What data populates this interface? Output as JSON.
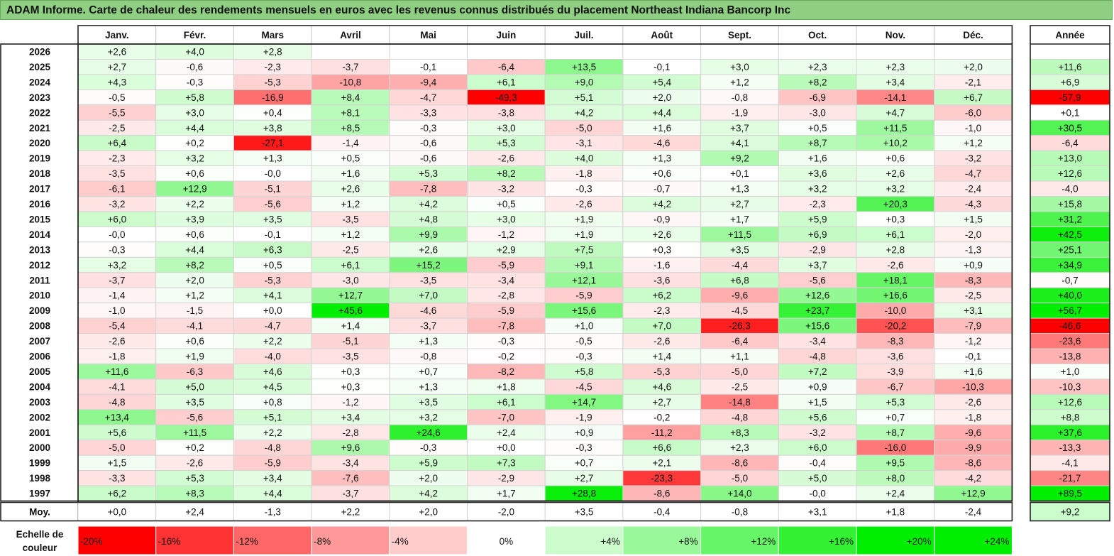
{
  "title": "ADAM Informe. Carte de chaleur des rendements mensuels en euros avec les revenus connus distribués du placement Northeast Indiana Bancorp Inc",
  "chart_data": {
    "type": "heatmap",
    "months": [
      "Janv.",
      "Févr.",
      "Mars",
      "Avril",
      "Mai",
      "Juin",
      "Juil.",
      "Août",
      "Sept.",
      "Oct.",
      "Nov.",
      "Déc."
    ],
    "year_header": "Année",
    "avg_label": "Moy.",
    "rows": [
      {
        "year": "2026",
        "values": [
          "+2,6",
          "+4,0",
          "+2,8",
          "",
          "",
          "",
          "",
          "",
          "",
          "",
          "",
          ""
        ],
        "total": ""
      },
      {
        "year": "2025",
        "values": [
          "+2,7",
          "-0,6",
          "-2,3",
          "-3,7",
          "-0,1",
          "-6,4",
          "+13,5",
          "-0,1",
          "+3,0",
          "+2,3",
          "+2,3",
          "+2,0"
        ],
        "total": "+11,6"
      },
      {
        "year": "2024",
        "values": [
          "+4,3",
          "-0,3",
          "-5,3",
          "-10,8",
          "-9,4",
          "+6,1",
          "+9,0",
          "+5,4",
          "+1,2",
          "+8,2",
          "+3,4",
          "-2,1"
        ],
        "total": "+6,9"
      },
      {
        "year": "2023",
        "values": [
          "-0,5",
          "+5,8",
          "-16,9",
          "+8,4",
          "-4,7",
          "-49,3",
          "+5,1",
          "+2,0",
          "-0,8",
          "-6,9",
          "-14,1",
          "+6,7"
        ],
        "total": "-57,9"
      },
      {
        "year": "2022",
        "values": [
          "-5,5",
          "+3,0",
          "+0,4",
          "+8,1",
          "-3,3",
          "-3,8",
          "+4,2",
          "+4,4",
          "-1,9",
          "-3,0",
          "+4,7",
          "-6,0"
        ],
        "total": "+0,1"
      },
      {
        "year": "2021",
        "values": [
          "-2,5",
          "+4,4",
          "+3,8",
          "+8,5",
          "-0,3",
          "+3,0",
          "-5,0",
          "+1,6",
          "+3,7",
          "+0,5",
          "+11,5",
          "-1,0"
        ],
        "total": "+30,5"
      },
      {
        "year": "2020",
        "values": [
          "+6,4",
          "+0,2",
          "-27,1",
          "-1,4",
          "-0,6",
          "+5,3",
          "-3,1",
          "-4,6",
          "+4,1",
          "+8,7",
          "+10,2",
          "+1,2"
        ],
        "total": "-6,4"
      },
      {
        "year": "2019",
        "values": [
          "-2,3",
          "+3,2",
          "+1,3",
          "+0,5",
          "-0,6",
          "-2,6",
          "+4,0",
          "+1,3",
          "+9,2",
          "+1,6",
          "+0,6",
          "-3,2"
        ],
        "total": "+13,0"
      },
      {
        "year": "2018",
        "values": [
          "-3,5",
          "+0,6",
          "-0,0",
          "+1,6",
          "+5,3",
          "+8,2",
          "-1,8",
          "+0,6",
          "+0,1",
          "+3,6",
          "+2,6",
          "-4,7"
        ],
        "total": "+12,6"
      },
      {
        "year": "2017",
        "values": [
          "-6,1",
          "+12,9",
          "-5,1",
          "+2,6",
          "-7,8",
          "-3,2",
          "-0,3",
          "-0,7",
          "+1,3",
          "+3,2",
          "+3,2",
          "-2,4"
        ],
        "total": "-4,0"
      },
      {
        "year": "2016",
        "values": [
          "-3,2",
          "+2,2",
          "-5,6",
          "+1,2",
          "+4,2",
          "+0,5",
          "-2,6",
          "+4,2",
          "+2,7",
          "-2,3",
          "+20,3",
          "-4,3"
        ],
        "total": "+15,8"
      },
      {
        "year": "2015",
        "values": [
          "+6,0",
          "+3,9",
          "+3,5",
          "-3,5",
          "+4,8",
          "+3,0",
          "+1,9",
          "-0,9",
          "+1,7",
          "+5,9",
          "+0,3",
          "+1,5"
        ],
        "total": "+31,2"
      },
      {
        "year": "2014",
        "values": [
          "-0,0",
          "+0,6",
          "-0,1",
          "+1,2",
          "+9,9",
          "-1,2",
          "+1,9",
          "+2,6",
          "+11,5",
          "+6,9",
          "+6,1",
          "-2,0"
        ],
        "total": "+42,5"
      },
      {
        "year": "2013",
        "values": [
          "-0,3",
          "+4,4",
          "+6,3",
          "-2,5",
          "+2,6",
          "+2,9",
          "+7,5",
          "+0,3",
          "+3,5",
          "-2,9",
          "+2,8",
          "-1,3"
        ],
        "total": "+25,1"
      },
      {
        "year": "2012",
        "values": [
          "+3,2",
          "+8,2",
          "+0,5",
          "+6,1",
          "+15,2",
          "-5,9",
          "+9,1",
          "-1,6",
          "-4,4",
          "+3,7",
          "-2,6",
          "+0,9"
        ],
        "total": "+34,9"
      },
      {
        "year": "2011",
        "values": [
          "-3,7",
          "+2,0",
          "-5,3",
          "-3,0",
          "-3,5",
          "-3,4",
          "+12,1",
          "-3,6",
          "+6,8",
          "-5,6",
          "+18,1",
          "-8,3"
        ],
        "total": "-0,7"
      },
      {
        "year": "2010",
        "values": [
          "-1,4",
          "+1,2",
          "+4,1",
          "+12,7",
          "+7,0",
          "-2,8",
          "-5,9",
          "+6,2",
          "-9,6",
          "+12,6",
          "+16,6",
          "-2,5"
        ],
        "total": "+40,0"
      },
      {
        "year": "2009",
        "values": [
          "-1,0",
          "-1,5",
          "+0,0",
          "+45,6",
          "-4,6",
          "-5,9",
          "+15,6",
          "-2,3",
          "-4,5",
          "+23,7",
          "-10,0",
          "+3,1"
        ],
        "total": "+56,7"
      },
      {
        "year": "2008",
        "values": [
          "-5,4",
          "-4,1",
          "-4,7",
          "+1,4",
          "-3,7",
          "-7,8",
          "+1,0",
          "+7,0",
          "-26,3",
          "+15,6",
          "-20,2",
          "-7,9"
        ],
        "total": "-46,6"
      },
      {
        "year": "2007",
        "values": [
          "-2,6",
          "+0,6",
          "+2,2",
          "-5,1",
          "+1,3",
          "-0,3",
          "-0,5",
          "-2,6",
          "-6,4",
          "-3,4",
          "-8,3",
          "-1,2"
        ],
        "total": "-23,6"
      },
      {
        "year": "2006",
        "values": [
          "-1,8",
          "+1,9",
          "-4,0",
          "-3,5",
          "-0,8",
          "-0,2",
          "-0,3",
          "+1,4",
          "+1,1",
          "-4,8",
          "-3,6",
          "-0,1"
        ],
        "total": "-13,8"
      },
      {
        "year": "2005",
        "values": [
          "+11,6",
          "-6,3",
          "+4,6",
          "+0,3",
          "+0,7",
          "-8,2",
          "+5,8",
          "-5,3",
          "-5,0",
          "+7,2",
          "-3,9",
          "+1,6"
        ],
        "total": "+1,0"
      },
      {
        "year": "2004",
        "values": [
          "-4,1",
          "+5,0",
          "+4,5",
          "+0,3",
          "+1,3",
          "+1,8",
          "-4,5",
          "+4,6",
          "-2,5",
          "+0,9",
          "-6,7",
          "-10,3"
        ],
        "total": "-10,3"
      },
      {
        "year": "2003",
        "values": [
          "-4,8",
          "+3,5",
          "+0,8",
          "-1,2",
          "+3,5",
          "+6,1",
          "+14,7",
          "+2,7",
          "-14,8",
          "+1,5",
          "+5,3",
          "-2,6"
        ],
        "total": "+12,6"
      },
      {
        "year": "2002",
        "values": [
          "+13,4",
          "-5,6",
          "+5,1",
          "+3,4",
          "+3,2",
          "-7,0",
          "-1,9",
          "-0,2",
          "-4,8",
          "+5,6",
          "+0,7",
          "-1,8"
        ],
        "total": "+8,8"
      },
      {
        "year": "2001",
        "values": [
          "+5,6",
          "+11,5",
          "+2,2",
          "-2,8",
          "+24,6",
          "+2,4",
          "+0,9",
          "-11,2",
          "+8,3",
          "-3,2",
          "+8,7",
          "-9,6"
        ],
        "total": "+37,6"
      },
      {
        "year": "2000",
        "values": [
          "-5,0",
          "+0,2",
          "-4,8",
          "+9,6",
          "-0,3",
          "+0,0",
          "-0,3",
          "+6,6",
          "+2,3",
          "+6,0",
          "-16,0",
          "-9,9"
        ],
        "total": "-13,3"
      },
      {
        "year": "1999",
        "values": [
          "+1,5",
          "-2,6",
          "-5,9",
          "-3,4",
          "+5,9",
          "+7,3",
          "+0,7",
          "+2,1",
          "-8,6",
          "-0,4",
          "+9,5",
          "-8,6"
        ],
        "total": "-4,1"
      },
      {
        "year": "1998",
        "values": [
          "-3,3",
          "+5,3",
          "+3,4",
          "-7,6",
          "+2,0",
          "-2,9",
          "+2,7",
          "-23,3",
          "-5,0",
          "+5,0",
          "+8,0",
          "-4,2"
        ],
        "total": "-21,7"
      },
      {
        "year": "1997",
        "values": [
          "+6,2",
          "+8,3",
          "+4,4",
          "-3,7",
          "+4,2",
          "+1,7",
          "+28,8",
          "-8,6",
          "+14,0",
          "-0,0",
          "+2,4",
          "+12,9"
        ],
        "total": "+89,5"
      }
    ],
    "average": {
      "values": [
        "+0,0",
        "+2,4",
        "-1,3",
        "+2,2",
        "+2,0",
        "-2,0",
        "+3,5",
        "-0,4",
        "-0,8",
        "+3,1",
        "+1,8",
        "-2,4"
      ],
      "total": "+9,2"
    },
    "scale_label": "Echelle de couleur",
    "scale": [
      "-20%",
      "-16%",
      "-12%",
      "-8%",
      "-4%",
      "0%",
      "+4%",
      "+8%",
      "+12%",
      "+16%",
      "+20%",
      "+24%"
    ],
    "colors": {
      "negative": "#ff0000",
      "positive": "#00ee00",
      "neutral": "#ffffff",
      "title_bg": "#8fcf82"
    }
  }
}
